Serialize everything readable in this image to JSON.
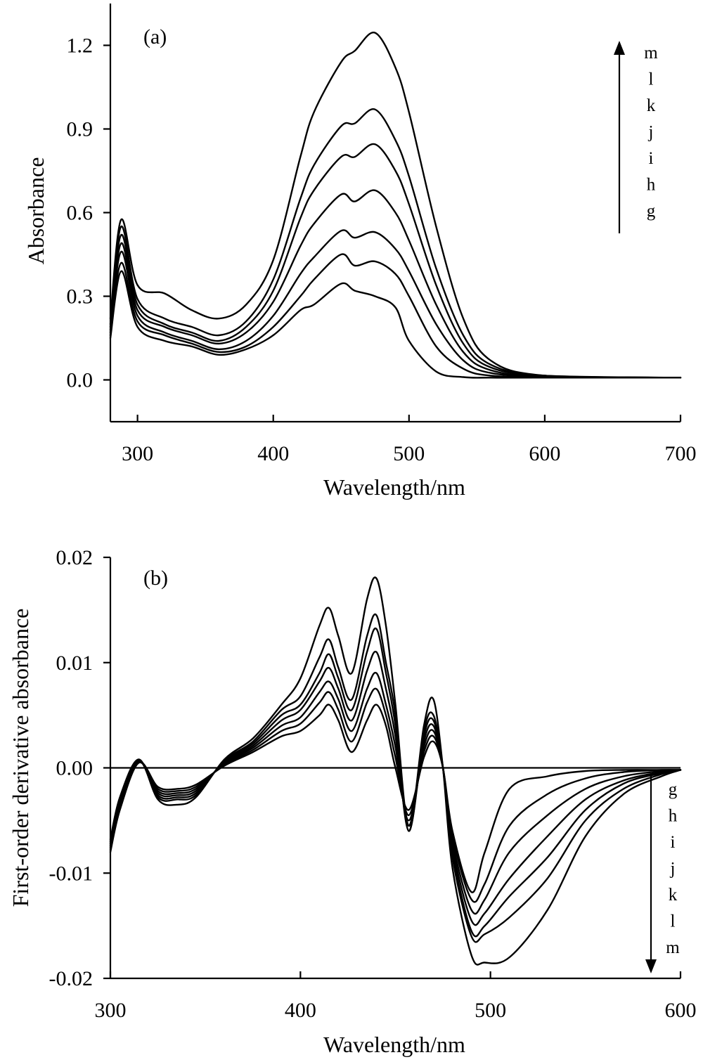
{
  "chart_data": [
    {
      "type": "line",
      "panel_label": "(a)",
      "xlabel": "Wavelength/nm",
      "ylabel": "Absorbance",
      "xlim": [
        280,
        700
      ],
      "ylim": [
        -0.15,
        1.35
      ],
      "xticks": [
        300,
        400,
        500,
        600,
        700
      ],
      "xtick_labels": [
        "300",
        "400",
        "500",
        "600",
        "700"
      ],
      "yticks": [
        0.0,
        0.3,
        0.6,
        0.9,
        1.2
      ],
      "ytick_labels": [
        "0.0",
        "0.3",
        "0.6",
        "0.9",
        "1.2"
      ],
      "grid": false,
      "legend": "none",
      "series_order_annotation": [
        "m",
        "l",
        "k",
        "j",
        "i",
        "h",
        "g"
      ],
      "annotation_arrow": "up",
      "series": [
        {
          "name": "g",
          "x": [
            280,
            288,
            300,
            320,
            340,
            360,
            380,
            400,
            420,
            430,
            450,
            460,
            475,
            490,
            500,
            520,
            540,
            560,
            600,
            700
          ],
          "y": [
            0.15,
            0.39,
            0.19,
            0.14,
            0.12,
            0.09,
            0.11,
            0.16,
            0.25,
            0.27,
            0.345,
            0.32,
            0.3,
            0.26,
            0.14,
            0.03,
            0.01,
            0.008,
            0.008,
            0.008
          ]
        },
        {
          "name": "h",
          "x": [
            280,
            288,
            300,
            320,
            340,
            360,
            380,
            400,
            420,
            430,
            450,
            460,
            475,
            490,
            500,
            520,
            540,
            560,
            600,
            700
          ],
          "y": [
            0.16,
            0.42,
            0.21,
            0.16,
            0.13,
            0.1,
            0.12,
            0.19,
            0.3,
            0.36,
            0.45,
            0.41,
            0.425,
            0.38,
            0.3,
            0.12,
            0.04,
            0.015,
            0.01,
            0.008
          ]
        },
        {
          "name": "i",
          "x": [
            280,
            288,
            300,
            320,
            340,
            360,
            380,
            400,
            420,
            430,
            450,
            460,
            475,
            490,
            500,
            520,
            540,
            560,
            600,
            700
          ],
          "y": [
            0.17,
            0.46,
            0.23,
            0.17,
            0.14,
            0.11,
            0.14,
            0.23,
            0.38,
            0.44,
            0.535,
            0.51,
            0.53,
            0.47,
            0.39,
            0.2,
            0.07,
            0.025,
            0.012,
            0.008
          ]
        },
        {
          "name": "j",
          "x": [
            280,
            288,
            300,
            320,
            340,
            360,
            380,
            400,
            420,
            430,
            450,
            460,
            475,
            490,
            500,
            520,
            540,
            560,
            600,
            700
          ],
          "y": [
            0.18,
            0.49,
            0.25,
            0.19,
            0.16,
            0.13,
            0.17,
            0.28,
            0.48,
            0.56,
            0.665,
            0.64,
            0.68,
            0.6,
            0.5,
            0.27,
            0.1,
            0.035,
            0.012,
            0.008
          ]
        },
        {
          "name": "k",
          "x": [
            280,
            288,
            300,
            320,
            340,
            360,
            380,
            400,
            420,
            430,
            450,
            460,
            475,
            490,
            500,
            520,
            540,
            560,
            600,
            700
          ],
          "y": [
            0.19,
            0.52,
            0.27,
            0.2,
            0.17,
            0.14,
            0.19,
            0.32,
            0.58,
            0.68,
            0.8,
            0.8,
            0.845,
            0.75,
            0.63,
            0.34,
            0.13,
            0.045,
            0.015,
            0.008
          ]
        },
        {
          "name": "l",
          "x": [
            280,
            288,
            300,
            320,
            340,
            360,
            380,
            400,
            420,
            430,
            450,
            460,
            475,
            490,
            500,
            520,
            540,
            560,
            600,
            700
          ],
          "y": [
            0.2,
            0.55,
            0.29,
            0.22,
            0.19,
            0.16,
            0.21,
            0.36,
            0.65,
            0.77,
            0.91,
            0.92,
            0.97,
            0.86,
            0.73,
            0.4,
            0.16,
            0.055,
            0.015,
            0.008
          ]
        },
        {
          "name": "m",
          "x": [
            280,
            288,
            300,
            320,
            340,
            360,
            380,
            400,
            420,
            430,
            450,
            460,
            475,
            490,
            500,
            520,
            540,
            560,
            600,
            700
          ],
          "y": [
            0.22,
            0.575,
            0.34,
            0.31,
            0.25,
            0.22,
            0.27,
            0.43,
            0.8,
            0.96,
            1.14,
            1.18,
            1.245,
            1.12,
            0.96,
            0.55,
            0.22,
            0.07,
            0.015,
            0.008
          ]
        }
      ]
    },
    {
      "type": "line",
      "panel_label": "(b)",
      "xlabel": "Wavelength/nm",
      "ylabel": "First-order derivative absorbance",
      "xlim": [
        300,
        600
      ],
      "ylim": [
        -0.02,
        0.02
      ],
      "xticks": [
        300,
        400,
        500,
        600
      ],
      "xtick_labels": [
        "300",
        "400",
        "500",
        "600"
      ],
      "yticks": [
        -0.02,
        -0.01,
        0.0,
        0.01,
        0.02
      ],
      "ytick_labels": [
        "-0.02",
        "-0.01",
        "0.00",
        "0.01",
        "0.02"
      ],
      "grid": false,
      "zero_line": true,
      "legend": "none",
      "series_order_annotation": [
        "g",
        "h",
        "i",
        "j",
        "k",
        "l",
        "m"
      ],
      "annotation_arrow": "down",
      "series": [
        {
          "name": "g",
          "x": [
            300,
            305,
            315,
            325,
            335,
            345,
            360,
            375,
            390,
            400,
            410,
            415,
            420,
            427,
            435,
            440,
            445,
            450,
            457,
            465,
            470,
            475,
            480,
            490,
            497,
            510,
            530,
            550,
            570,
            590,
            600
          ],
          "y": [
            -0.008,
            -0.004,
            0.0005,
            -0.0018,
            -0.002,
            -0.0016,
            0.0002,
            0.0015,
            0.003,
            0.0035,
            0.005,
            0.006,
            0.0045,
            0.0015,
            0.0045,
            0.006,
            0.004,
            0.0,
            -0.004,
            0.001,
            0.0025,
            0.0,
            -0.006,
            -0.0118,
            -0.008,
            -0.002,
            -0.0008,
            -0.0003,
            -0.0002,
            -0.0002,
            -0.0002
          ]
        },
        {
          "name": "h",
          "x": [
            300,
            305,
            315,
            325,
            335,
            345,
            360,
            375,
            390,
            400,
            410,
            415,
            420,
            427,
            435,
            440,
            445,
            450,
            457,
            465,
            470,
            475,
            480,
            490,
            497,
            510,
            530,
            550,
            570,
            590,
            600
          ],
          "y": [
            -0.0078,
            -0.0038,
            0.0005,
            -0.002,
            -0.0022,
            -0.0018,
            0.0003,
            0.0017,
            0.0035,
            0.0042,
            0.0062,
            0.0072,
            0.0055,
            0.0025,
            0.0062,
            0.0075,
            0.005,
            0.001,
            -0.0045,
            0.0015,
            0.003,
            0.0,
            -0.0065,
            -0.0125,
            -0.011,
            -0.0055,
            -0.0025,
            -0.001,
            -0.0004,
            -0.0002,
            -0.0002
          ]
        },
        {
          "name": "i",
          "x": [
            300,
            305,
            315,
            325,
            335,
            345,
            360,
            375,
            390,
            400,
            410,
            415,
            420,
            427,
            435,
            440,
            445,
            450,
            457,
            465,
            470,
            475,
            480,
            490,
            497,
            510,
            530,
            550,
            570,
            590,
            600
          ],
          "y": [
            -0.0076,
            -0.0036,
            0.0006,
            -0.0022,
            -0.0024,
            -0.002,
            0.0004,
            0.0019,
            0.004,
            0.0048,
            0.0072,
            0.0082,
            0.0065,
            0.0035,
            0.0075,
            0.009,
            0.006,
            0.002,
            -0.005,
            0.002,
            0.0035,
            0.0,
            -0.007,
            -0.0135,
            -0.0125,
            -0.008,
            -0.0045,
            -0.002,
            -0.0008,
            -0.0003,
            -0.0002
          ]
        },
        {
          "name": "j",
          "x": [
            300,
            305,
            315,
            325,
            335,
            345,
            360,
            375,
            390,
            400,
            410,
            415,
            420,
            427,
            435,
            440,
            445,
            450,
            457,
            465,
            470,
            475,
            480,
            490,
            497,
            510,
            530,
            550,
            570,
            590,
            600
          ],
          "y": [
            -0.0074,
            -0.0034,
            0.0006,
            -0.0024,
            -0.0026,
            -0.0022,
            0.0005,
            0.0021,
            0.0045,
            0.0055,
            0.0082,
            0.0095,
            0.0075,
            0.0045,
            0.0092,
            0.011,
            0.0075,
            0.003,
            -0.0055,
            0.0025,
            0.004,
            0.0,
            -0.0075,
            -0.0145,
            -0.0138,
            -0.0105,
            -0.0065,
            -0.003,
            -0.0012,
            -0.0004,
            -0.0002
          ]
        },
        {
          "name": "k",
          "x": [
            300,
            305,
            315,
            325,
            335,
            345,
            360,
            375,
            390,
            400,
            410,
            415,
            420,
            427,
            435,
            440,
            445,
            450,
            457,
            465,
            470,
            475,
            480,
            490,
            497,
            510,
            530,
            550,
            570,
            590,
            600
          ],
          "y": [
            -0.0072,
            -0.0032,
            0.0007,
            -0.0026,
            -0.0028,
            -0.0024,
            0.0006,
            0.0023,
            0.005,
            0.006,
            0.009,
            0.0108,
            0.0085,
            0.0055,
            0.011,
            0.0132,
            0.009,
            0.004,
            -0.006,
            0.003,
            0.0045,
            0.0,
            -0.008,
            -0.0155,
            -0.015,
            -0.0122,
            -0.0085,
            -0.004,
            -0.0015,
            -0.0005,
            -0.0002
          ]
        },
        {
          "name": "l",
          "x": [
            300,
            305,
            315,
            325,
            335,
            345,
            360,
            375,
            390,
            400,
            410,
            415,
            420,
            427,
            435,
            440,
            445,
            450,
            457,
            465,
            470,
            475,
            480,
            490,
            497,
            510,
            530,
            550,
            570,
            590,
            600
          ],
          "y": [
            -0.007,
            -0.003,
            0.0007,
            -0.0028,
            -0.003,
            -0.0026,
            0.0007,
            0.0025,
            0.0055,
            0.0068,
            0.0105,
            0.0122,
            0.0095,
            0.0065,
            0.0125,
            0.0145,
            0.01,
            0.005,
            -0.006,
            0.0035,
            0.005,
            0.0,
            -0.0085,
            -0.016,
            -0.0158,
            -0.0142,
            -0.0105,
            -0.005,
            -0.002,
            -0.0006,
            -0.0002
          ]
        },
        {
          "name": "m",
          "x": [
            300,
            305,
            315,
            325,
            335,
            345,
            360,
            375,
            390,
            400,
            410,
            415,
            420,
            427,
            435,
            440,
            445,
            450,
            457,
            465,
            470,
            475,
            480,
            490,
            497,
            510,
            530,
            550,
            570,
            590,
            600
          ],
          "y": [
            -0.0068,
            -0.0028,
            0.0008,
            -0.003,
            -0.0035,
            -0.0028,
            0.0008,
            0.0028,
            0.006,
            0.0085,
            0.0135,
            0.0152,
            0.0125,
            0.009,
            0.016,
            0.018,
            0.0135,
            0.006,
            -0.0055,
            0.004,
            0.0065,
            0.0,
            -0.0095,
            -0.0178,
            -0.0185,
            -0.018,
            -0.0135,
            -0.0065,
            -0.0025,
            -0.0008,
            -0.0002
          ]
        }
      ]
    }
  ]
}
